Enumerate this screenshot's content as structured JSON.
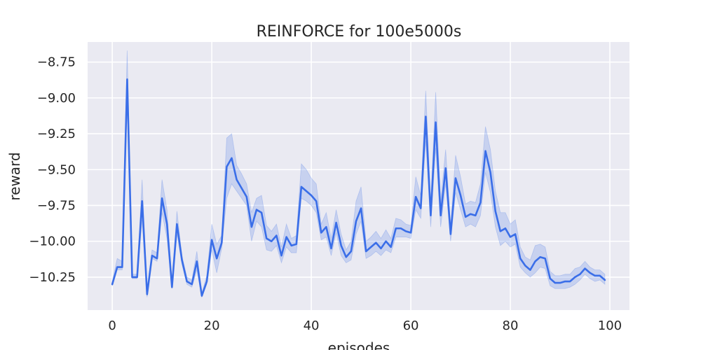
{
  "chart_data": {
    "type": "line",
    "title": "REINFORCE for 100e5000s",
    "xlabel": "episodes",
    "ylabel": "reward",
    "xlim": [
      -4.95,
      103.95
    ],
    "ylim": [
      -10.48,
      -8.61
    ],
    "x_ticks": [
      0,
      20,
      40,
      60,
      80,
      100
    ],
    "x_tick_labels": [
      "0",
      "20",
      "40",
      "60",
      "80",
      "100"
    ],
    "y_ticks": [
      -10.25,
      -10.0,
      -9.75,
      -9.5,
      -9.25,
      -9.0,
      -8.75
    ],
    "y_tick_labels": [
      "−10.25",
      "−10.00",
      "−9.75",
      "−9.50",
      "−9.25",
      "−9.00",
      "−8.75"
    ],
    "grid": true,
    "background": "#eaeaf2",
    "series": [
      {
        "color": "#3a6ee8",
        "band_color": "#3a6ee8",
        "x": [
          0,
          1,
          2,
          3,
          4,
          5,
          6,
          7,
          8,
          9,
          10,
          11,
          12,
          13,
          14,
          15,
          16,
          17,
          18,
          19,
          20,
          21,
          22,
          23,
          24,
          25,
          26,
          27,
          28,
          29,
          30,
          31,
          32,
          33,
          34,
          35,
          36,
          37,
          38,
          39,
          40,
          41,
          42,
          43,
          44,
          45,
          46,
          47,
          48,
          49,
          50,
          51,
          52,
          53,
          54,
          55,
          56,
          57,
          58,
          59,
          60,
          61,
          62,
          63,
          64,
          65,
          66,
          67,
          68,
          69,
          70,
          71,
          72,
          73,
          74,
          75,
          76,
          77,
          78,
          79,
          80,
          81,
          82,
          83,
          84,
          85,
          86,
          87,
          88,
          89,
          90,
          91,
          92,
          93,
          94,
          95,
          96,
          97,
          98,
          99
        ],
        "y": [
          -10.3,
          -10.18,
          -10.18,
          -8.87,
          -10.25,
          -10.25,
          -9.72,
          -10.37,
          -10.1,
          -10.12,
          -9.7,
          -9.88,
          -10.32,
          -9.88,
          -10.13,
          -10.28,
          -10.3,
          -10.14,
          -10.38,
          -10.28,
          -9.99,
          -10.12,
          -10.01,
          -9.48,
          -9.42,
          -9.57,
          -9.63,
          -9.69,
          -9.9,
          -9.78,
          -9.8,
          -9.98,
          -10.0,
          -9.96,
          -10.1,
          -9.97,
          -10.03,
          -10.02,
          -9.62,
          -9.65,
          -9.68,
          -9.72,
          -9.94,
          -9.9,
          -10.05,
          -9.87,
          -10.03,
          -10.11,
          -10.07,
          -9.86,
          -9.77,
          -10.07,
          -10.04,
          -10.01,
          -10.05,
          -10.0,
          -10.04,
          -9.91,
          -9.91,
          -9.93,
          -9.94,
          -9.69,
          -9.77,
          -9.13,
          -9.82,
          -9.17,
          -9.82,
          -9.49,
          -9.95,
          -9.56,
          -9.68,
          -9.83,
          -9.81,
          -9.82,
          -9.73,
          -9.37,
          -9.52,
          -9.79,
          -9.93,
          -9.91,
          -9.97,
          -9.95,
          -10.12,
          -10.17,
          -10.2,
          -10.14,
          -10.11,
          -10.12,
          -10.26,
          -10.29,
          -10.29,
          -10.28,
          -10.28,
          -10.25,
          -10.23,
          -10.19,
          -10.22,
          -10.24,
          -10.24,
          -10.27
        ],
        "lower": [
          -10.31,
          -10.2,
          -10.2,
          -9.02,
          -10.26,
          -10.26,
          -9.85,
          -10.39,
          -10.12,
          -10.14,
          -9.8,
          -9.98,
          -10.33,
          -9.95,
          -10.16,
          -10.3,
          -10.32,
          -10.2,
          -10.39,
          -10.3,
          -10.06,
          -10.22,
          -10.05,
          -9.7,
          -9.6,
          -9.65,
          -9.7,
          -9.75,
          -10.0,
          -9.86,
          -9.9,
          -10.06,
          -10.07,
          -10.03,
          -10.15,
          -10.04,
          -10.08,
          -10.08,
          -9.7,
          -9.72,
          -9.75,
          -9.8,
          -9.99,
          -9.97,
          -10.1,
          -9.94,
          -10.1,
          -10.15,
          -10.13,
          -9.95,
          -9.86,
          -10.12,
          -10.1,
          -10.07,
          -10.1,
          -10.06,
          -10.08,
          -9.97,
          -9.97,
          -9.97,
          -9.98,
          -9.78,
          -9.84,
          -9.3,
          -9.9,
          -9.35,
          -9.9,
          -9.6,
          -10.0,
          -9.66,
          -9.78,
          -9.9,
          -9.88,
          -9.9,
          -9.82,
          -9.52,
          -9.66,
          -9.9,
          -10.03,
          -10.0,
          -10.04,
          -10.02,
          -10.18,
          -10.22,
          -10.25,
          -10.22,
          -10.18,
          -10.19,
          -10.31,
          -10.33,
          -10.33,
          -10.33,
          -10.32,
          -10.3,
          -10.27,
          -10.23,
          -10.26,
          -10.28,
          -10.27,
          -10.3
        ],
        "upper": [
          -10.28,
          -10.12,
          -10.14,
          -8.67,
          -10.23,
          -10.23,
          -9.57,
          -10.34,
          -10.06,
          -10.08,
          -9.57,
          -9.78,
          -10.29,
          -9.79,
          -10.1,
          -10.25,
          -10.27,
          -10.07,
          -10.36,
          -10.24,
          -9.88,
          -10.02,
          -9.96,
          -9.28,
          -9.25,
          -9.47,
          -9.53,
          -9.6,
          -9.8,
          -9.7,
          -9.68,
          -9.89,
          -9.93,
          -9.88,
          -10.04,
          -9.88,
          -9.98,
          -9.96,
          -9.46,
          -9.5,
          -9.56,
          -9.6,
          -9.88,
          -9.8,
          -9.98,
          -9.78,
          -9.95,
          -10.06,
          -10.0,
          -9.72,
          -9.62,
          -10.0,
          -9.97,
          -9.93,
          -9.98,
          -9.92,
          -9.98,
          -9.84,
          -9.85,
          -9.88,
          -9.89,
          -9.55,
          -9.68,
          -8.95,
          -9.73,
          -8.96,
          -9.72,
          -9.36,
          -9.89,
          -9.4,
          -9.55,
          -9.74,
          -9.72,
          -9.73,
          -9.6,
          -9.2,
          -9.36,
          -9.65,
          -9.8,
          -9.8,
          -9.88,
          -9.85,
          -10.04,
          -10.11,
          -10.13,
          -10.03,
          -10.02,
          -10.04,
          -10.21,
          -10.24,
          -10.24,
          -10.23,
          -10.23,
          -10.19,
          -10.18,
          -10.14,
          -10.18,
          -10.2,
          -10.2,
          -10.23
        ]
      }
    ]
  }
}
